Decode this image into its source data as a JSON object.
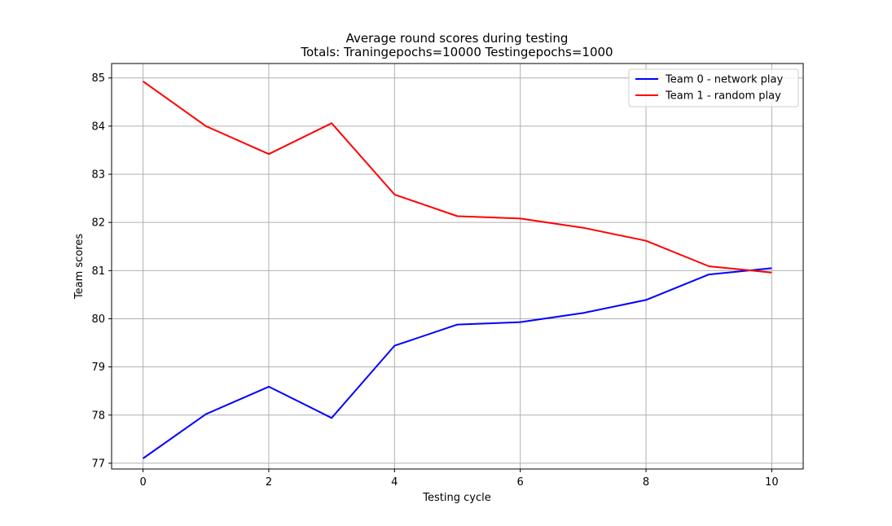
{
  "chart_data": {
    "type": "line",
    "title": "Average round scores during testing",
    "subtitle": "Totals: Traningepochs=10000 Testingepochs=1000",
    "xlabel": "Testing cycle",
    "ylabel": "Team scores",
    "xlim": [
      -0.5,
      10.5
    ],
    "ylim": [
      76.88,
      85.3
    ],
    "xticks": [
      0,
      2,
      4,
      6,
      8,
      10
    ],
    "yticks": [
      77,
      78,
      79,
      80,
      81,
      82,
      83,
      84,
      85
    ],
    "grid": true,
    "legend_position": "top-right",
    "x": [
      0,
      1,
      2,
      3,
      4,
      5,
      6,
      7,
      8,
      9,
      10
    ],
    "series": [
      {
        "name": "Team 0 - network play",
        "color": "#0000ff",
        "values": [
          77.1,
          78.02,
          78.59,
          77.94,
          79.44,
          79.88,
          79.93,
          80.12,
          80.39,
          80.92,
          81.05
        ]
      },
      {
        "name": "Team 1 - random play",
        "color": "#ff0000",
        "values": [
          84.93,
          84.0,
          83.42,
          84.06,
          82.58,
          82.13,
          82.08,
          81.89,
          81.62,
          81.09,
          80.96
        ]
      }
    ]
  }
}
